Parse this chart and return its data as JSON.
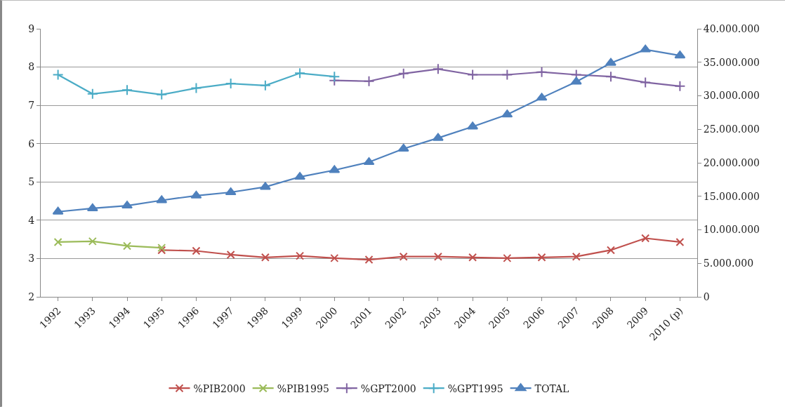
{
  "chart_data": {
    "type": "line",
    "categories": [
      "1992",
      "1993",
      "1994",
      "1995",
      "1996",
      "1997",
      "1998",
      "1999",
      "2000",
      "2001",
      "2002",
      "2003",
      "2004",
      "2005",
      "2006",
      "2007",
      "2008",
      "2009",
      "2010 (p)"
    ],
    "series": [
      {
        "name": "%PIB2000",
        "color": "#c0504d",
        "marker": "x",
        "values": [
          null,
          null,
          null,
          3.22,
          3.2,
          3.1,
          3.03,
          3.07,
          3.01,
          2.97,
          3.05,
          3.05,
          3.03,
          3.01,
          3.03,
          3.05,
          3.22,
          3.53,
          3.43
        ]
      },
      {
        "name": "%PIB1995",
        "color": "#9bbb59",
        "marker": "x",
        "values": [
          3.43,
          3.45,
          3.33,
          3.28,
          null,
          null,
          null,
          null,
          null,
          null,
          null,
          null,
          null,
          null,
          null,
          null,
          null,
          null,
          null
        ]
      },
      {
        "name": "%GPT2000",
        "color": "#8064a2",
        "marker": "cross",
        "values": [
          null,
          null,
          null,
          null,
          null,
          null,
          null,
          null,
          7.65,
          7.63,
          7.83,
          7.95,
          7.8,
          7.8,
          7.87,
          7.8,
          7.75,
          7.6,
          7.5
        ]
      },
      {
        "name": "%GPT1995",
        "color": "#4bacc6",
        "marker": "cross",
        "values": [
          7.8,
          7.3,
          7.4,
          7.28,
          7.45,
          7.57,
          7.52,
          7.84,
          7.75,
          null,
          null,
          null,
          null,
          null,
          null,
          null,
          null,
          null,
          null
        ]
      },
      {
        "name": "TOTAL",
        "color": "#4f81bd",
        "marker": "triangle",
        "axis": "y2",
        "values": [
          12700000,
          13200000,
          13600000,
          14400000,
          15100000,
          15600000,
          16400000,
          17900000,
          18900000,
          20100000,
          22100000,
          23700000,
          25400000,
          27200000,
          29700000,
          32100000,
          34900000,
          36900000,
          36000000
        ]
      }
    ],
    "ylim": [
      2,
      9
    ],
    "yticks": [
      2,
      3,
      4,
      5,
      6,
      7,
      8,
      9
    ],
    "y2lim": [
      0,
      40000000
    ],
    "y2ticks": [
      0,
      {
        "value": 5000000,
        "label": "5.000.000"
      },
      {
        "value": 10000000,
        "label": "10.000.000"
      },
      {
        "value": 15000000,
        "label": "15.000.000"
      },
      {
        "value": 20000000,
        "label": "20.000.000"
      },
      {
        "value": 25000000,
        "label": "25.000.000"
      },
      {
        "value": 30000000,
        "label": "30.000.000"
      },
      {
        "value": 35000000,
        "label": "35.000.000"
      },
      {
        "value": 40000000,
        "label": "40.000.000"
      }
    ],
    "grid": "y",
    "legend": "bottom",
    "line_style": "solid"
  }
}
